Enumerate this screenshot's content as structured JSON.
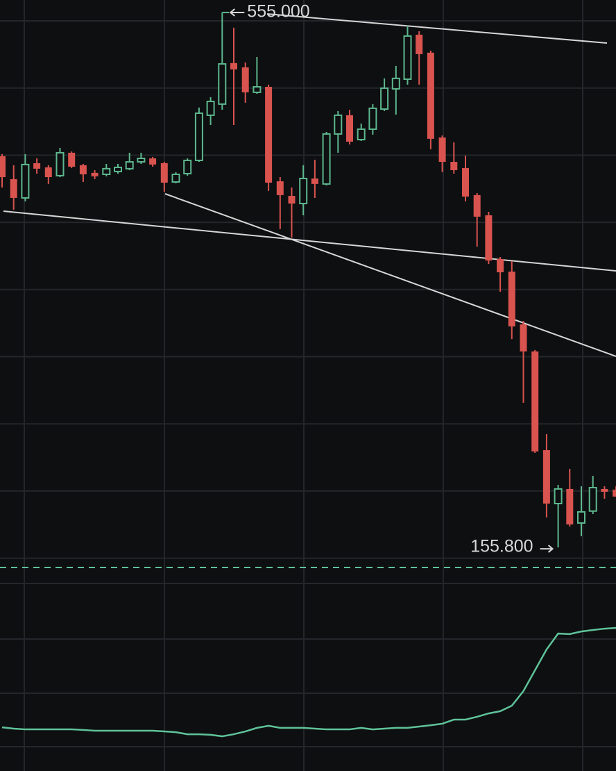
{
  "chart_data": [
    {
      "type": "candlestick",
      "up_color": "#5db88f",
      "down_color": "#d9534f",
      "ylim": [
        140.8,
        564.3
      ],
      "open": [
        447.7,
        430.6,
        416.6,
        442.5,
        439.4,
        433.2,
        450.3,
        441.0,
        435.3,
        434.2,
        436.3,
        438.4,
        443.5,
        446.1,
        442.5,
        428.5,
        434.7,
        444.6,
        478.3,
        486.6,
        517.2,
        514.0,
        495.4,
        499.5,
        429.0,
        418.1,
        412.4,
        431.1,
        427.0,
        464.3,
        478.3,
        460.1,
        467.9,
        482.9,
        498.0,
        505.2,
        538.4,
        525.0,
        461.7,
        443.5,
        438.9,
        418.7,
        403.6,
        371.0,
        361.6,
        322.2,
        302.0,
        228.4,
        188.5,
        199.4,
        174.0,
        182.9,
        199.4,
        198.9
      ],
      "high": [
        449.3,
        441.0,
        449.3,
        446.1,
        441.0,
        453.9,
        451.3,
        442.0,
        437.3,
        442.0,
        442.0,
        450.3,
        450.3,
        447.2,
        443.5,
        435.8,
        446.1,
        484.0,
        491.8,
        555.0,
        543.6,
        517.7,
        521.8,
        501.1,
        432.1,
        424.4,
        441.0,
        445.1,
        465.8,
        481.4,
        482.4,
        472.1,
        486.6,
        505.8,
        515.1,
        545.2,
        541.0,
        526.5,
        463.2,
        458.1,
        448.2,
        420.2,
        406.2,
        372.5,
        369.4,
        324.8,
        303.1,
        240.3,
        202.5,
        214.4,
        201.4,
        209.2,
        201.4,
        201.4
      ],
      "low": [
        424.4,
        407.8,
        414.0,
        434.7,
        427.0,
        432.1,
        438.9,
        428.5,
        430.6,
        432.7,
        434.7,
        437.3,
        442.0,
        439.9,
        421.2,
        427.5,
        433.2,
        443.5,
        471.0,
        482.4,
        471.0,
        487.6,
        494.3,
        421.8,
        393.3,
        387.0,
        403.6,
        416.6,
        425.9,
        450.3,
        456.5,
        459.1,
        463.8,
        481.4,
        478.8,
        501.1,
        501.1,
        452.9,
        435.8,
        434.7,
        414.0,
        380.3,
        367.3,
        346.6,
        311.3,
        263.7,
        226.3,
        178.1,
        155.8,
        171.4,
        164.1,
        180.7,
        192.1,
        193.7
      ],
      "close": [
        432.1,
        416.6,
        441.5,
        438.4,
        432.1,
        450.3,
        439.9,
        434.2,
        432.7,
        438.4,
        439.4,
        443.5,
        446.1,
        441.5,
        428.0,
        434.2,
        444.6,
        479.8,
        488.6,
        516.6,
        512.5,
        495.4,
        499.5,
        428.0,
        418.7,
        412.4,
        431.1,
        427.0,
        464.3,
        478.3,
        458.6,
        467.9,
        483.5,
        498.5,
        505.8,
        537.4,
        523.9,
        460.7,
        443.5,
        437.3,
        417.6,
        402.6,
        369.9,
        361.1,
        320.7,
        302.0,
        227.4,
        188.5,
        199.4,
        172.9,
        182.3,
        200.4,
        197.3,
        193.7
      ],
      "annotations": [
        {
          "label": "555.000",
          "value": 555.0
        },
        {
          "label": "155.800",
          "value": 155.8
        }
      ]
    },
    {
      "type": "line",
      "color": "#5fc39a",
      "ylim": [
        0,
        100
      ],
      "values": [
        23.3,
        22.6,
        22.2,
        22.2,
        22.2,
        22.2,
        22.2,
        21.9,
        21.5,
        21.5,
        21.5,
        21.5,
        21.5,
        21.5,
        21.1,
        20.7,
        19.6,
        19.6,
        19.3,
        18.5,
        19.6,
        21.1,
        23.0,
        24.1,
        23.0,
        23.0,
        23.0,
        22.6,
        22.2,
        22.2,
        22.2,
        23.0,
        22.2,
        22.6,
        23.0,
        23.0,
        23.7,
        24.4,
        25.2,
        27.4,
        27.4,
        28.9,
        30.7,
        31.9,
        34.8,
        42.6,
        53.7,
        64.8,
        73.3,
        73.0,
        74.4,
        75.2,
        75.9,
        76.3
      ]
    }
  ]
}
